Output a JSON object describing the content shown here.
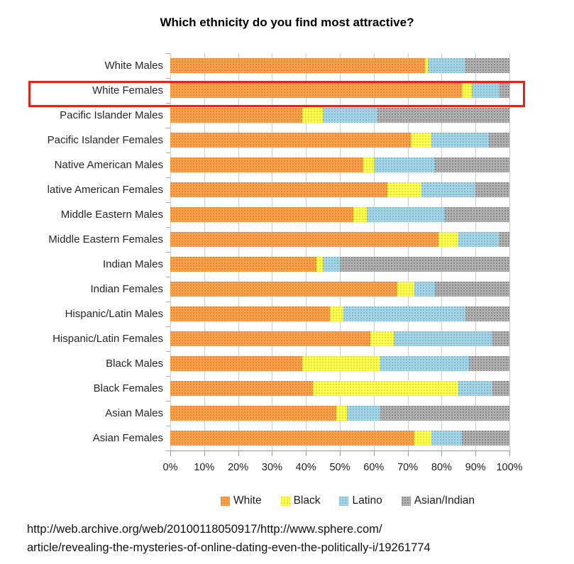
{
  "page": {
    "background": "#ffffff"
  },
  "chart_data": {
    "type": "bar",
    "orientation": "horizontal-stacked",
    "title": "Which ethnicity do you find most attractive?",
    "categories": [
      "White Males",
      "White Females",
      "Pacific Islander Males",
      "Pacific Islander Females",
      "Native American Males",
      "lative American Females",
      "Middle Eastern Males",
      "Middle Eastern Females",
      "Indian Males",
      "Indian Females",
      "Hispanic/Latin Males",
      "Hispanic/Latin Females",
      "Black Males",
      "Black Females",
      "Asian Males",
      "Asian Females"
    ],
    "series": [
      {
        "name": "White",
        "color": "#F8A04C",
        "dot_color": "rgba(205,110,25,0.5)",
        "values": [
          75,
          86,
          39,
          71,
          57,
          64,
          54,
          79,
          43,
          67,
          47,
          59,
          39,
          42,
          49,
          72
        ]
      },
      {
        "name": "Black",
        "color": "#FFFF52",
        "dot_color": "rgba(190,190,20,0.5)",
        "values": [
          1,
          3,
          6,
          6,
          3,
          10,
          4,
          6,
          2,
          5,
          4,
          7,
          23,
          43,
          3,
          5
        ]
      },
      {
        "name": "Latino",
        "color": "#A5D5E4",
        "dot_color": "rgba(95,160,185,0.55)",
        "values": [
          11,
          8,
          16,
          17,
          18,
          16,
          23,
          12,
          5,
          6,
          36,
          29,
          26,
          10,
          10,
          9
        ]
      },
      {
        "name": "Asian/Indian",
        "color": "#B0B0B0",
        "dot_color": "rgba(95,95,95,0.5)",
        "values": [
          13,
          3,
          39,
          6,
          22,
          10,
          19,
          3,
          50,
          22,
          13,
          5,
          12,
          5,
          38,
          14
        ]
      }
    ],
    "x_ticks": [
      "0%",
      "10%",
      "20%",
      "30%",
      "40%",
      "50%",
      "60%",
      "70%",
      "80%",
      "90%",
      "100%"
    ],
    "xlim": [
      0,
      100
    ],
    "grid": "vertical",
    "legend_position": "bottom",
    "highlight": {
      "category": "White Females",
      "box_color": "#E3231A"
    }
  },
  "footer": {
    "line1": "http://web.archive.org/web/20100118050917/http://www.sphere.com/",
    "line2": "article/revealing-the-mysteries-of-online-dating-even-the-politically-i/19261774"
  }
}
